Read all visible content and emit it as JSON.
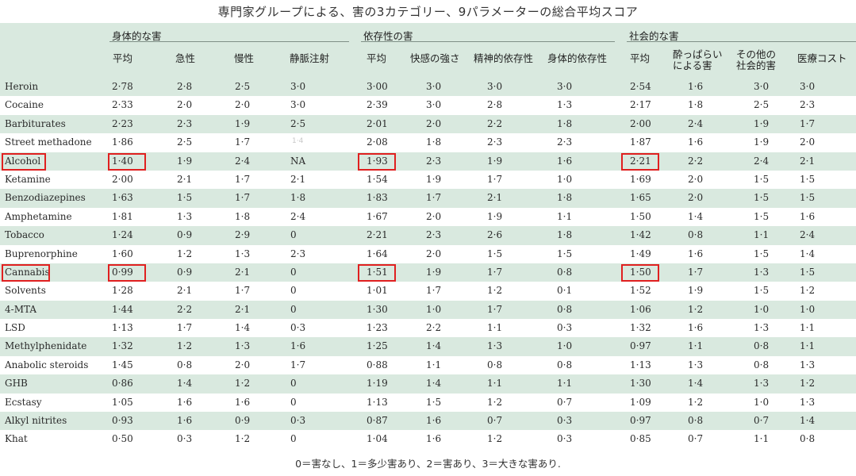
{
  "title": "専門家グループによる、害の3カテゴリー、9パラメーターの総合平均スコア",
  "groups": [
    "身体的な害",
    "依存性の害",
    "社会的な害"
  ],
  "columns": {
    "p_avg": "平均",
    "acute": "急性",
    "chronic": "慢性",
    "iv": "静脈注射",
    "d_avg": "平均",
    "pleasure": "快感の強さ",
    "psych": "精神的依存性",
    "phys": "身体的依存性",
    "s_avg": "平均",
    "intox_1": "酔っぱらい",
    "intox_2": "による害",
    "other_1": "その他の",
    "other_2": "社会的害",
    "medcost": "医療コスト"
  },
  "rows": [
    {
      "name": "Heroin",
      "v": [
        "2·78",
        "2·8",
        "2·5",
        "3·0",
        "3·00",
        "3·0",
        "3·0",
        "3·0",
        "2·54",
        "1·6",
        "3·0",
        "3·0"
      ]
    },
    {
      "name": "Cocaine",
      "v": [
        "2·33",
        "2·0",
        "2·0",
        "3·0",
        "2·39",
        "3·0",
        "2·8",
        "1·3",
        "2·17",
        "1·8",
        "2·5",
        "2·3"
      ]
    },
    {
      "name": "Barbiturates",
      "v": [
        "2·23",
        "2·3",
        "1·9",
        "2·5",
        "2·01",
        "2·0",
        "2·2",
        "1·8",
        "2·00",
        "2·4",
        "1·9",
        "1·7"
      ]
    },
    {
      "name": "Street methadone",
      "v": [
        "1·86",
        "2·5",
        "1·7",
        "",
        "2·08",
        "1·8",
        "2·3",
        "2·3",
        "1·87",
        "1·6",
        "1·9",
        "2·0"
      ]
    },
    {
      "name": "Alcohol",
      "v": [
        "1·40",
        "1·9",
        "2·4",
        "NA",
        "1·93",
        "2·3",
        "1·9",
        "1·6",
        "2·21",
        "2·2",
        "2·4",
        "2·1"
      ]
    },
    {
      "name": "Ketamine",
      "v": [
        "2·00",
        "2·1",
        "1·7",
        "2·1",
        "1·54",
        "1·9",
        "1·7",
        "1·0",
        "1·69",
        "2·0",
        "1·5",
        "1·5"
      ]
    },
    {
      "name": "Benzodiazepines",
      "v": [
        "1·63",
        "1·5",
        "1·7",
        "1·8",
        "1·83",
        "1·7",
        "2·1",
        "1·8",
        "1·65",
        "2·0",
        "1·5",
        "1·5"
      ]
    },
    {
      "name": "Amphetamine",
      "v": [
        "1·81",
        "1·3",
        "1·8",
        "2·4",
        "1·67",
        "2·0",
        "1·9",
        "1·1",
        "1·50",
        "1·4",
        "1·5",
        "1·6"
      ]
    },
    {
      "name": "Tobacco",
      "v": [
        "1·24",
        "0·9",
        "2·9",
        "0",
        "2·21",
        "2·3",
        "2·6",
        "1·8",
        "1·42",
        "0·8",
        "1·1",
        "2·4"
      ]
    },
    {
      "name": "Buprenorphine",
      "v": [
        "1·60",
        "1·2",
        "1·3",
        "2·3",
        "1·64",
        "2·0",
        "1·5",
        "1·5",
        "1·49",
        "1·6",
        "1·5",
        "1·4"
      ]
    },
    {
      "name": "Cannabis",
      "v": [
        "0·99",
        "0·9",
        "2·1",
        "0",
        "1·51",
        "1·9",
        "1·7",
        "0·8",
        "1·50",
        "1·7",
        "1·3",
        "1·5"
      ]
    },
    {
      "name": "Solvents",
      "v": [
        "1·28",
        "2·1",
        "1·7",
        "0",
        "1·01",
        "1·7",
        "1·2",
        "0·1",
        "1·52",
        "1·9",
        "1·5",
        "1·2"
      ]
    },
    {
      "name": "4-MTA",
      "v": [
        "1·44",
        "2·2",
        "2·1",
        "0",
        "1·30",
        "1·0",
        "1·7",
        "0·8",
        "1·06",
        "1·2",
        "1·0",
        "1·0"
      ]
    },
    {
      "name": "LSD",
      "v": [
        "1·13",
        "1·7",
        "1·4",
        "0·3",
        "1·23",
        "2·2",
        "1·1",
        "0·3",
        "1·32",
        "1·6",
        "1·3",
        "1·1"
      ]
    },
    {
      "name": "Methylphenidate",
      "v": [
        "1·32",
        "1·2",
        "1·3",
        "1·6",
        "1·25",
        "1·4",
        "1·3",
        "1·0",
        "0·97",
        "1·1",
        "0·8",
        "1·1"
      ]
    },
    {
      "name": "Anabolic steroids",
      "v": [
        "1·45",
        "0·8",
        "2·0",
        "1·7",
        "0·88",
        "1·1",
        "0·8",
        "0·8",
        "1·13",
        "1·3",
        "0·8",
        "1·3"
      ]
    },
    {
      "name": "GHB",
      "v": [
        "0·86",
        "1·4",
        "1·2",
        "0",
        "1·19",
        "1·4",
        "1·1",
        "1·1",
        "1·30",
        "1·4",
        "1·3",
        "1·2"
      ]
    },
    {
      "name": "Ecstasy",
      "v": [
        "1·05",
        "1·6",
        "1·6",
        "0",
        "1·13",
        "1·5",
        "1·2",
        "0·7",
        "1·09",
        "1·2",
        "1·0",
        "1·3"
      ]
    },
    {
      "name": "Alkyl nitrites",
      "v": [
        "0·93",
        "1·6",
        "0·9",
        "0·3",
        "0·87",
        "1·6",
        "0·7",
        "0·3",
        "0·97",
        "0·8",
        "0·7",
        "1·4"
      ]
    },
    {
      "name": "Khat",
      "v": [
        "0·50",
        "0·3",
        "1·2",
        "0",
        "1·04",
        "1·6",
        "1·2",
        "0·3",
        "0·85",
        "0·7",
        "1·1",
        "0·8"
      ]
    }
  ],
  "faint_mark": "1·4",
  "footnote": "0＝害なし、1＝多少害あり、2＝害あり、3＝大きな害あり."
}
